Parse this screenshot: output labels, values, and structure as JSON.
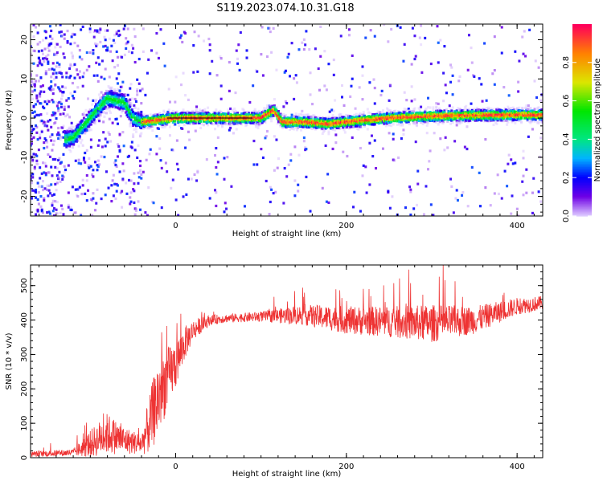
{
  "title": "S119.2023.074.10.31.G18",
  "chart_data": [
    {
      "type": "heatmap",
      "xlabel": "Height of straight line (km)",
      "ylabel": "Frequency (Hz)",
      "xlim": [
        -170,
        430
      ],
      "ylim": [
        -25,
        24
      ],
      "xticks": [
        0,
        200,
        400
      ],
      "yticks": [
        -20,
        -10,
        0,
        10,
        20
      ],
      "colorbar": {
        "label": "Normalized spectral amplitude",
        "range": [
          0,
          1
        ],
        "ticks": [
          "0.0",
          "0.2",
          "0.4",
          "0.6",
          "0.8"
        ],
        "tick_values": [
          0,
          0.2,
          0.4,
          0.6,
          0.8
        ]
      },
      "peak_frequency_track": {
        "x": [
          -160,
          -140,
          -120,
          -100,
          -80,
          -60,
          -50,
          -40,
          0,
          80,
          100,
          115,
          125,
          150,
          180,
          200,
          250,
          300,
          350,
          400,
          430
        ],
        "y": [
          -5,
          -6,
          -5,
          0,
          5,
          4,
          0,
          -1,
          0,
          0,
          0,
          2,
          -1,
          -1,
          -1.5,
          -1,
          0,
          0.5,
          0.7,
          0.8,
          0.8
        ]
      }
    },
    {
      "type": "line",
      "xlabel": "Height of straight line (km)",
      "ylabel": "SNR (10 * v/v)",
      "xlim": [
        -170,
        430
      ],
      "ylim": [
        0,
        560
      ],
      "xticks": [
        0,
        200,
        400
      ],
      "yticks": [
        0,
        100,
        200,
        300,
        400,
        500
      ],
      "color": "#ee3333",
      "envelope": {
        "x": [
          -170,
          -120,
          -100,
          -80,
          -60,
          -40,
          -30,
          -20,
          -10,
          0,
          10,
          20,
          40,
          60,
          100,
          150,
          200,
          250,
          300,
          350,
          400,
          430
        ],
        "mean": [
          10,
          15,
          40,
          70,
          50,
          40,
          100,
          180,
          230,
          270,
          330,
          370,
          400,
          405,
          410,
          415,
          400,
          395,
          390,
          400,
          440,
          450
        ],
        "spread": [
          8,
          10,
          40,
          60,
          40,
          30,
          90,
          120,
          90,
          70,
          50,
          30,
          15,
          12,
          15,
          30,
          40,
          45,
          55,
          40,
          25,
          20
        ]
      }
    }
  ]
}
